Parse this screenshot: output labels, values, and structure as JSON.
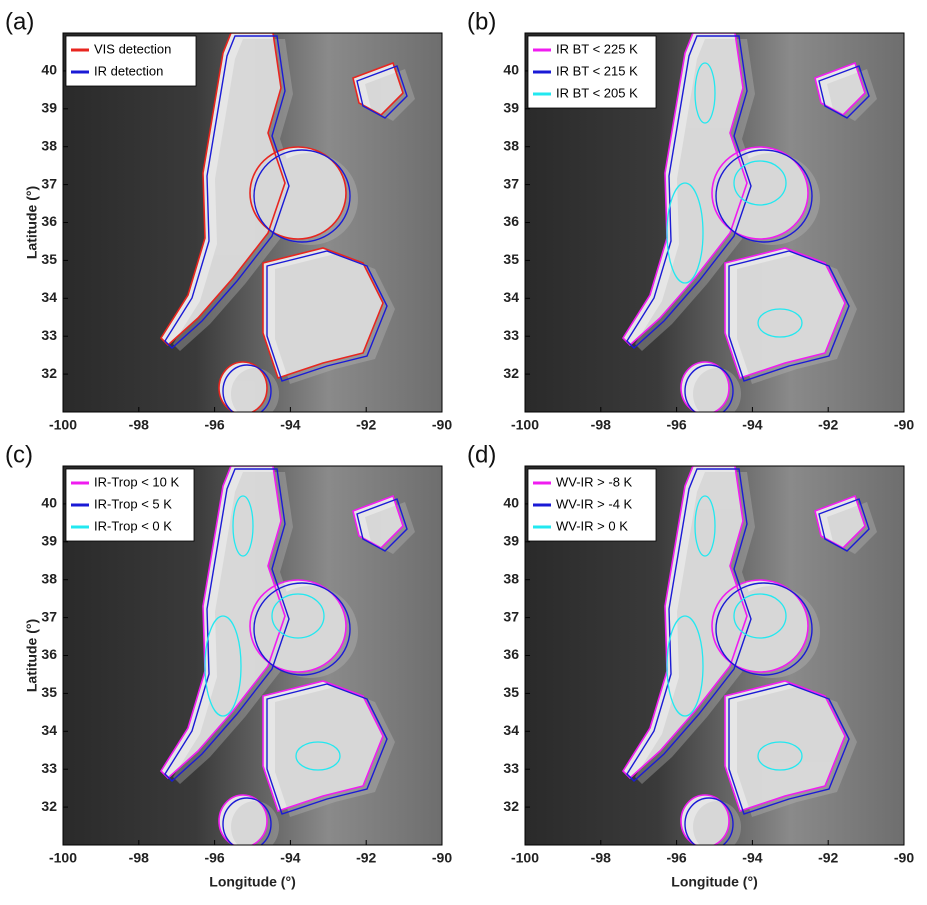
{
  "x_label": "Longitude (°)",
  "y_label": "Latitude (°)",
  "xlim": [
    -100,
    -90
  ],
  "ylim": [
    31,
    41
  ],
  "xticks": [
    -100,
    -98,
    -96,
    -94,
    -92,
    -90
  ],
  "yticks": [
    32,
    33,
    34,
    35,
    36,
    37,
    38,
    39,
    40
  ],
  "panels": [
    {
      "label": "(a)",
      "legend": [
        {
          "name": "VIS detection",
          "color": "#e8251f"
        },
        {
          "name": "IR detection",
          "color": "#1a1ad6"
        }
      ]
    },
    {
      "label": "(b)",
      "legend": [
        {
          "name": "IR BT < 225 K",
          "color": "#f01cf0"
        },
        {
          "name": "IR BT < 215 K",
          "color": "#1a1ad6"
        },
        {
          "name": "IR BT < 205 K",
          "color": "#22e8f0"
        }
      ]
    },
    {
      "label": "(c)",
      "legend": [
        {
          "name": "IR-Trop < 10 K",
          "color": "#f01cf0"
        },
        {
          "name": "IR-Trop < 5 K",
          "color": "#1a1ad6"
        },
        {
          "name": "IR-Trop < 0 K",
          "color": "#22e8f0"
        }
      ]
    },
    {
      "label": "(d)",
      "legend": [
        {
          "name": "WV-IR > -8 K",
          "color": "#f01cf0"
        },
        {
          "name": "WV-IR > -4 K",
          "color": "#1a1ad6"
        },
        {
          "name": "WV-IR > 0 K",
          "color": "#22e8f0"
        }
      ]
    }
  ]
}
